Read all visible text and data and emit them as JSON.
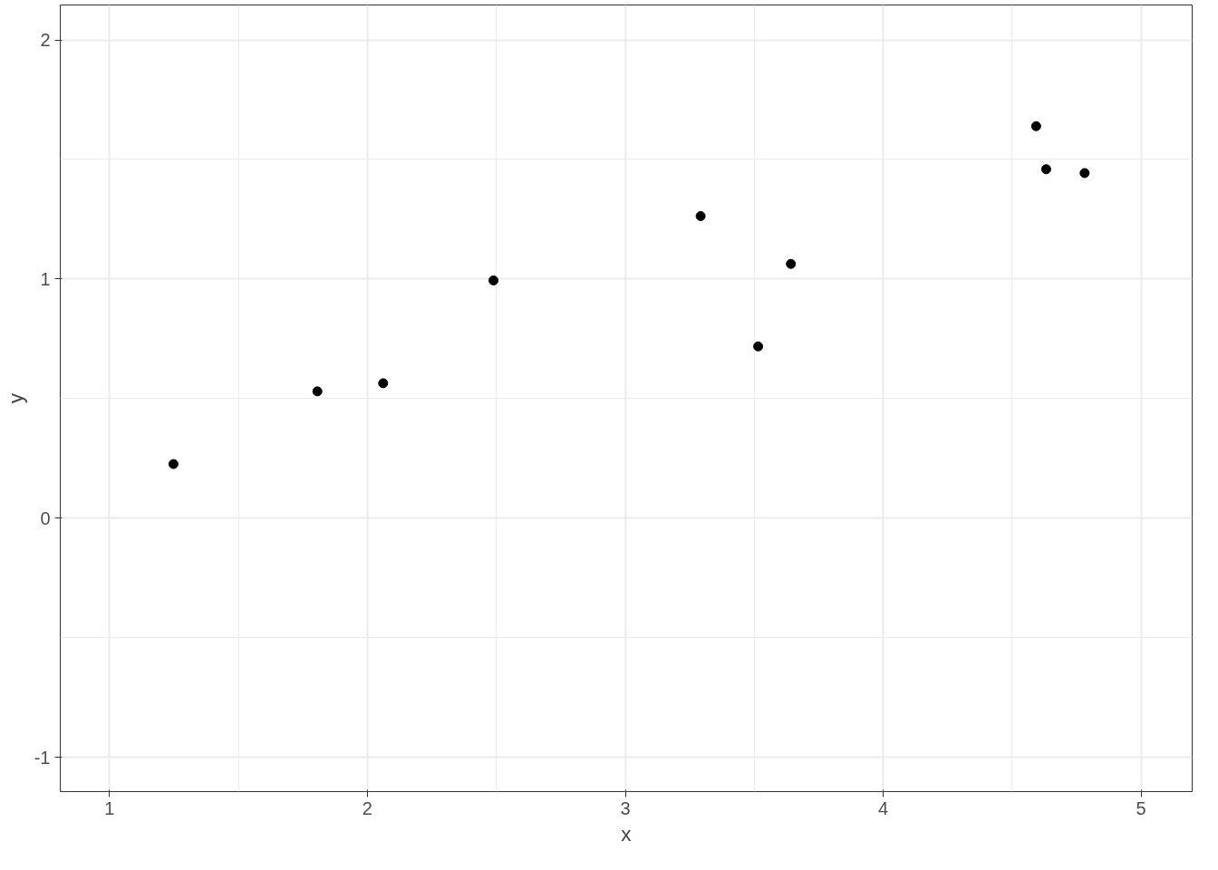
{
  "chart_data": {
    "type": "scatter",
    "xlabel": "x",
    "ylabel": "y",
    "x": [
      1.248,
      1.806,
      2.061,
      2.489,
      3.292,
      3.515,
      3.642,
      4.593,
      4.632,
      4.781
    ],
    "series": [
      {
        "color": "#000000",
        "values": [
          0.226,
          0.53,
          0.564,
          0.994,
          1.263,
          0.718,
          1.063,
          1.639,
          1.459,
          1.443
        ]
      }
    ],
    "xlim": [
      0.809,
      5.198
    ],
    "ylim": [
      -1.144,
      2.146
    ],
    "xticks": [
      1,
      2,
      3,
      4,
      5
    ],
    "yticks": [
      -1,
      0,
      1,
      2
    ],
    "grid": true,
    "marker": "circle"
  }
}
